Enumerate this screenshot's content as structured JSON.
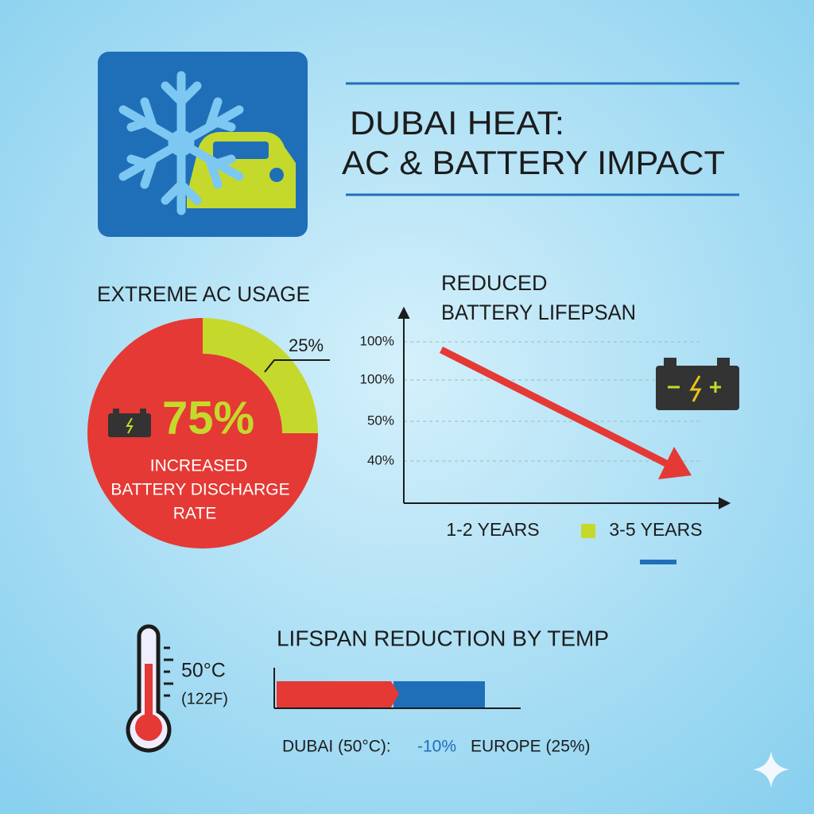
{
  "header": {
    "title_lines": [
      "DUBAI HEAT:",
      "AC & BATTERY IMPACT"
    ]
  },
  "pie": {
    "title": "EXTREME AC USAGE",
    "values": [
      75,
      25
    ],
    "value_labels": [
      "75%",
      "25%"
    ],
    "colors": [
      "#e53935",
      "#c5d92c"
    ],
    "caption": [
      "INCREASED",
      "BATTERY DISCHARGE",
      "RATE"
    ]
  },
  "lifespan": {
    "title_lines": [
      "REDUCED",
      "BATTERY LIFEPSAN"
    ],
    "axis_labels": [
      "100%",
      "100%",
      "50%",
      "40%"
    ],
    "legend": [
      "1-2 YEARS",
      "3-5 YEARS"
    ]
  },
  "temperature": {
    "reading": "50°C",
    "reading_f": "(122F)"
  },
  "reduction": {
    "title": "LIFSPAN REDUCTION BY TEMP",
    "caption": [
      "DUBAI (50°C):",
      "-10%",
      "EUROPE (25%)"
    ]
  }
}
